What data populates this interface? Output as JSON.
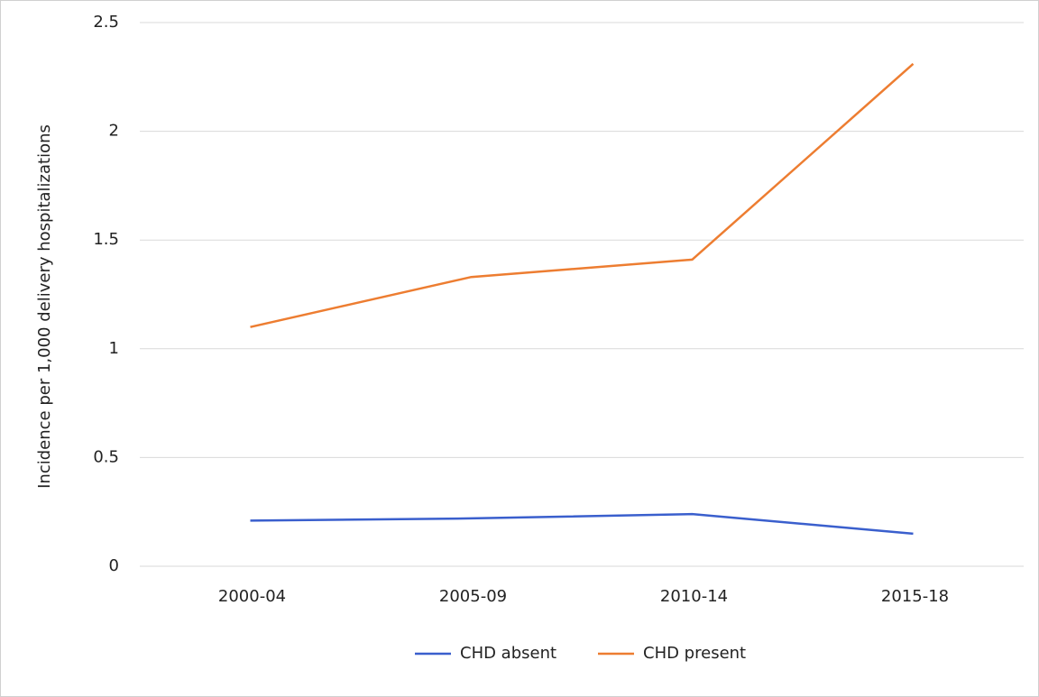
{
  "chart_data": {
    "type": "line",
    "y_label": "Incidence per 1,000 delivery hospitalizations",
    "categories": [
      "2000-04",
      "2005-09",
      "2010-14",
      "2015-18"
    ],
    "series": [
      {
        "name": "CHD absent",
        "color": "#3a5fcd",
        "values": [
          0.21,
          0.22,
          0.24,
          0.15
        ]
      },
      {
        "name": "CHD present",
        "color": "#ed7d31",
        "values": [
          1.1,
          1.33,
          1.41,
          2.31
        ]
      }
    ],
    "ylim": [
      0,
      2.5
    ],
    "yticks": [
      0,
      0.5,
      1,
      1.5,
      2,
      2.5
    ],
    "grid": true,
    "legend": "bottom"
  }
}
